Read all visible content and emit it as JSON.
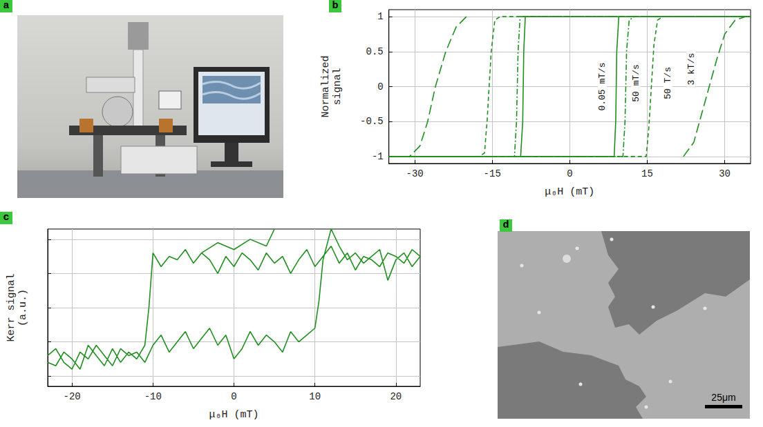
{
  "photos": [
    {
      "panel": "a"
    },
    {
      "panel": "d",
      "scale_bar": "25μm"
    }
  ],
  "chart_data": [
    {
      "panel": "b",
      "type": "line",
      "x_label": "μ₀H (mT)",
      "y_label": "Normalized signal",
      "xlim": [
        -35,
        35
      ],
      "xticks": [
        -30,
        -15,
        0,
        15,
        30
      ],
      "ylim": [
        -1.1,
        1.1
      ],
      "yticks": [
        -1,
        -0.5,
        0,
        0.5,
        1
      ],
      "grid": true,
      "series": [
        {
          "name": "0.05 mT/s",
          "color": "#1f8f1f",
          "line_style": "solid",
          "x": [
            -35,
            8.6,
            8.9,
            9.1,
            9.5,
            35,
            -8.6,
            -8.9,
            -9.1,
            -9.5,
            -35
          ],
          "values": [
            -1,
            -1,
            -0.5,
            0.5,
            1,
            1,
            1,
            0.5,
            -0.5,
            -1,
            -1
          ]
        },
        {
          "name": "50 mT/s",
          "color": "#1f8f1f",
          "line_style": "dashdot",
          "x": [
            -35,
            10.3,
            10.7,
            11,
            11.5,
            12.5,
            35,
            -9.6,
            -10,
            -10.3,
            -10.7,
            -35
          ],
          "values": [
            -1,
            -1,
            -0.5,
            0.5,
            0.95,
            1,
            1,
            1,
            0.5,
            -0.5,
            -1,
            -1
          ]
        },
        {
          "name": "50 T/s",
          "color": "#1f8f1f",
          "line_style": "dashed",
          "x": [
            -35,
            14.8,
            15.3,
            15.8,
            16.3,
            17,
            18,
            35,
            -13.5,
            -14.5,
            -15.2,
            -15.6,
            -16,
            -16.5,
            -17.5,
            -35
          ],
          "values": [
            -1,
            -1,
            -0.6,
            0,
            0.6,
            0.95,
            1,
            1,
            1,
            0.95,
            0.5,
            0,
            -0.5,
            -0.95,
            -1,
            -1
          ]
        },
        {
          "name": "3 kT/s",
          "color": "#1f8f1f",
          "line_style": "longdash",
          "x": [
            22,
            24,
            25.5,
            27,
            28.5,
            30,
            32,
            34,
            null,
            -20,
            -22,
            -24,
            -26,
            -27.5,
            -29,
            -31
          ],
          "values": [
            -1,
            -0.8,
            -0.4,
            0,
            0.4,
            0.75,
            0.95,
            1,
            null,
            1,
            0.85,
            0.5,
            0,
            -0.5,
            -0.85,
            -1
          ]
        }
      ],
      "annotations": [
        {
          "text": "0.05 mT/s",
          "x": 6.3,
          "y": 0
        },
        {
          "text": "50 mT/s",
          "x": 12.8,
          "y": 0.05
        },
        {
          "text": "50 T/s",
          "x": 19,
          "y": 0.05
        },
        {
          "text": "3 kT/s",
          "x": 23.5,
          "y": 0.25
        }
      ]
    },
    {
      "panel": "c",
      "type": "line",
      "x_label": "μ₀H (mT)",
      "y_label": "Kerr signal (a.u.)",
      "xlim": [
        -23,
        23
      ],
      "xticks": [
        -20,
        -10,
        0,
        10,
        20
      ],
      "ylim": [
        -0.3,
        4.3
      ],
      "yticks": [
        0,
        1,
        2,
        3,
        4
      ],
      "grid": true,
      "tick_labels": "x",
      "series": [
        {
          "color": "#1f8f1f",
          "line_style": "solid",
          "x": [
            -23,
            -22,
            -21,
            -20,
            -19,
            -18,
            -17,
            -16,
            -15,
            -14,
            -13,
            -12,
            -11,
            -10,
            -9,
            -8,
            -7,
            -6,
            -5,
            -4,
            -3,
            -2,
            -1,
            0,
            1,
            2,
            3,
            4,
            5,
            6,
            7,
            8,
            9,
            10,
            10.5,
            11,
            12,
            13,
            14,
            15,
            16,
            17,
            18,
            19,
            20,
            21,
            22,
            23,
            22,
            21,
            20,
            19,
            18,
            17,
            16,
            15,
            14,
            13,
            12,
            11,
            10,
            9,
            8,
            7,
            6,
            5,
            4,
            3,
            2,
            1,
            0,
            -1,
            -2,
            -3,
            -4,
            -5,
            -6,
            -7,
            -8,
            -9,
            -10,
            -10.5,
            -11,
            -12,
            -13,
            -14,
            -15,
            -16,
            -17,
            -18,
            -19,
            -20,
            -21,
            -22,
            -23
          ],
          "values": [
            0.6,
            0.8,
            0.4,
            0.2,
            0.7,
            0.5,
            0.9,
            0.6,
            0.3,
            0.8,
            0.6,
            0.7,
            0.4,
            0.9,
            1.2,
            0.7,
            1.0,
            1.3,
            0.8,
            1.1,
            1.4,
            0.9,
            1.2,
            0.5,
            0.8,
            1.3,
            0.9,
            1.2,
            1.0,
            0.7,
            1.3,
            1.0,
            1.2,
            1.4,
            2.2,
            3.4,
            4.3,
            3.8,
            3.4,
            3.6,
            3.3,
            3.5,
            3.7,
            2.8,
            3.4,
            3.6,
            3.2,
            3.5,
            3.7,
            3.3,
            3.5,
            3.6,
            3.2,
            3.4,
            3.5,
            3.1,
            3.6,
            3.3,
            3.8,
            3.5,
            3.2,
            3.7,
            3.4,
            3.0,
            3.5,
            3.3,
            3.6,
            3.1,
            3.4,
            3.6,
            3.2,
            3.5,
            3.0,
            3.4,
            3.6,
            3.3,
            3.7,
            3.4,
            3.5,
            3.2,
            3.6,
            2.0,
            0.9,
            0.5,
            0.7,
            0.4,
            0.8,
            0.3,
            0.6,
            0.9,
            0.2,
            0.5,
            0.7,
            0.3,
            0.4
          ]
        },
        {
          "color": "#1f8f1f",
          "line_style": "solid",
          "x": [
            -4,
            -2,
            0,
            2,
            4,
            5
          ],
          "values": [
            3.6,
            3.9,
            3.7,
            4.0,
            3.8,
            4.3
          ]
        }
      ]
    }
  ]
}
